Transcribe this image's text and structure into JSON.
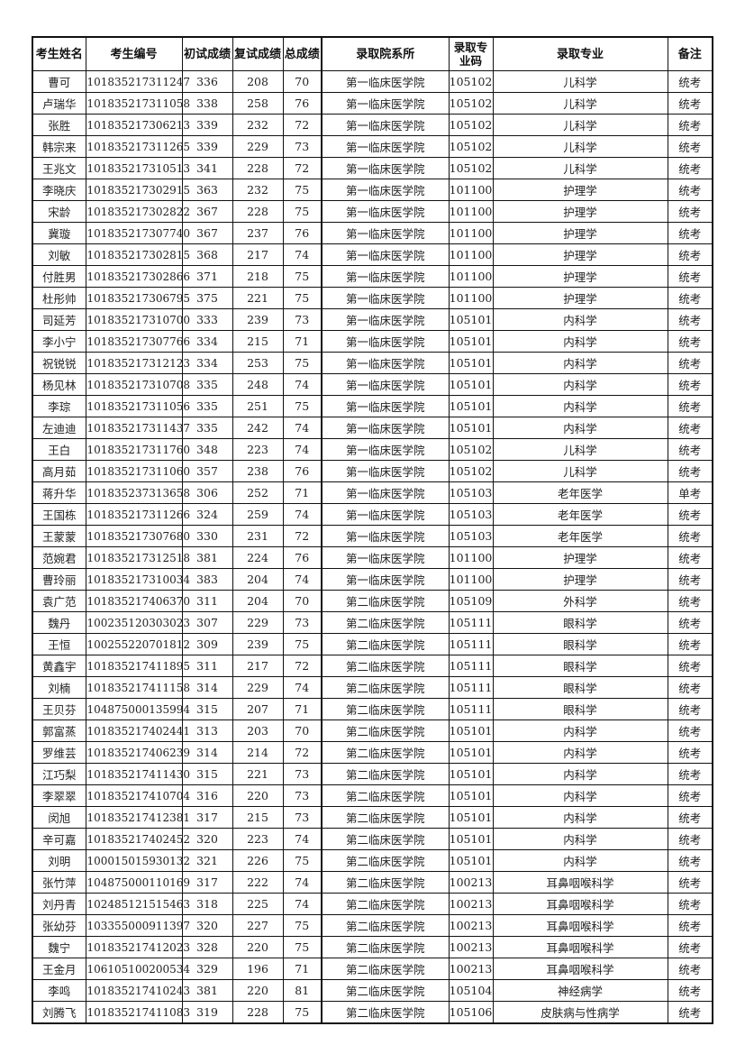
{
  "headers": [
    "考生姓名",
    "考生编号",
    "初试成绩",
    "复试成绩",
    "总成绩",
    "录取院系所",
    "录取专业码",
    "录取专业",
    "备注"
  ],
  "rows": [
    [
      "曹可",
      "101835217311247",
      "336",
      "208",
      "70",
      "第一临床医学院",
      "105102",
      "儿科学",
      "统考"
    ],
    [
      "卢瑞华",
      "101835217311058",
      "338",
      "258",
      "76",
      "第一临床医学院",
      "105102",
      "儿科学",
      "统考"
    ],
    [
      "张胜",
      "101835217306213",
      "339",
      "232",
      "72",
      "第一临床医学院",
      "105102",
      "儿科学",
      "统考"
    ],
    [
      "韩宗来",
      "101835217311265",
      "339",
      "229",
      "73",
      "第一临床医学院",
      "105102",
      "儿科学",
      "统考"
    ],
    [
      "王兆文",
      "101835217310513",
      "341",
      "228",
      "72",
      "第一临床医学院",
      "105102",
      "儿科学",
      "统考"
    ],
    [
      "李晓庆",
      "101835217302915",
      "363",
      "232",
      "75",
      "第一临床医学院",
      "101100",
      "护理学",
      "统考"
    ],
    [
      "宋龄",
      "101835217302822",
      "367",
      "228",
      "75",
      "第一临床医学院",
      "101100",
      "护理学",
      "统考"
    ],
    [
      "冀璇",
      "101835217307740",
      "367",
      "237",
      "76",
      "第一临床医学院",
      "101100",
      "护理学",
      "统考"
    ],
    [
      "刘敏",
      "101835217302815",
      "368",
      "217",
      "74",
      "第一临床医学院",
      "101100",
      "护理学",
      "统考"
    ],
    [
      "付胜男",
      "101835217302866",
      "371",
      "218",
      "75",
      "第一临床医学院",
      "101100",
      "护理学",
      "统考"
    ],
    [
      "杜彤帅",
      "101835217306795",
      "375",
      "221",
      "75",
      "第一临床医学院",
      "101100",
      "护理学",
      "统考"
    ],
    [
      "司延芳",
      "101835217310700",
      "333",
      "239",
      "73",
      "第一临床医学院",
      "105101",
      "内科学",
      "统考"
    ],
    [
      "李小宁",
      "101835217307766",
      "334",
      "215",
      "71",
      "第一临床医学院",
      "105101",
      "内科学",
      "统考"
    ],
    [
      "祝锐锐",
      "101835217312123",
      "334",
      "253",
      "75",
      "第一临床医学院",
      "105101",
      "内科学",
      "统考"
    ],
    [
      "杨见林",
      "101835217310708",
      "335",
      "248",
      "74",
      "第一临床医学院",
      "105101",
      "内科学",
      "统考"
    ],
    [
      "李琮",
      "101835217311056",
      "335",
      "251",
      "75",
      "第一临床医学院",
      "105101",
      "内科学",
      "统考"
    ],
    [
      "左迪迪",
      "101835217311437",
      "335",
      "242",
      "74",
      "第一临床医学院",
      "105101",
      "内科学",
      "统考"
    ],
    [
      "王白",
      "101835217311760",
      "348",
      "223",
      "74",
      "第一临床医学院",
      "105102",
      "儿科学",
      "统考"
    ],
    [
      "高月茹",
      "101835217311060",
      "357",
      "238",
      "76",
      "第一临床医学院",
      "105102",
      "儿科学",
      "统考"
    ],
    [
      "蒋升华",
      "101835237313658",
      "306",
      "252",
      "71",
      "第一临床医学院",
      "105103",
      "老年医学",
      "单考"
    ],
    [
      "王国栋",
      "101835217311266",
      "324",
      "259",
      "74",
      "第一临床医学院",
      "105103",
      "老年医学",
      "统考"
    ],
    [
      "王蒙蒙",
      "101835217307680",
      "330",
      "231",
      "72",
      "第一临床医学院",
      "105103",
      "老年医学",
      "统考"
    ],
    [
      "范婉君",
      "101835217312518",
      "381",
      "224",
      "76",
      "第一临床医学院",
      "101100",
      "护理学",
      "统考"
    ],
    [
      "曹玲丽",
      "101835217310034",
      "383",
      "204",
      "74",
      "第一临床医学院",
      "101100",
      "护理学",
      "统考"
    ],
    [
      "袁广范",
      "101835217406370",
      "311",
      "204",
      "70",
      "第二临床医学院",
      "105109",
      "外科学",
      "统考"
    ],
    [
      "魏丹",
      "100235120303023",
      "307",
      "229",
      "73",
      "第二临床医学院",
      "105111",
      "眼科学",
      "统考"
    ],
    [
      "王恒",
      "100255220701812",
      "309",
      "239",
      "75",
      "第二临床医学院",
      "105111",
      "眼科学",
      "统考"
    ],
    [
      "黄鑫宇",
      "101835217411895",
      "311",
      "217",
      "72",
      "第二临床医学院",
      "105111",
      "眼科学",
      "统考"
    ],
    [
      "刘楠",
      "101835217411158",
      "314",
      "229",
      "74",
      "第二临床医学院",
      "105111",
      "眼科学",
      "统考"
    ],
    [
      "王贝芬",
      "104875000135994",
      "315",
      "207",
      "71",
      "第二临床医学院",
      "105111",
      "眼科学",
      "统考"
    ],
    [
      "郭富蒸",
      "101835217402441",
      "313",
      "203",
      "70",
      "第二临床医学院",
      "105101",
      "内科学",
      "统考"
    ],
    [
      "罗维芸",
      "101835217406239",
      "314",
      "214",
      "72",
      "第二临床医学院",
      "105101",
      "内科学",
      "统考"
    ],
    [
      "江巧梨",
      "101835217411430",
      "315",
      "221",
      "73",
      "第二临床医学院",
      "105101",
      "内科学",
      "统考"
    ],
    [
      "李翠翠",
      "101835217410704",
      "316",
      "220",
      "73",
      "第二临床医学院",
      "105101",
      "内科学",
      "统考"
    ],
    [
      "闵旭",
      "101835217412381",
      "317",
      "215",
      "73",
      "第二临床医学院",
      "105101",
      "内科学",
      "统考"
    ],
    [
      "辛可嘉",
      "101835217402452",
      "320",
      "223",
      "74",
      "第二临床医学院",
      "105101",
      "内科学",
      "统考"
    ],
    [
      "刘明",
      "100015015930132",
      "321",
      "226",
      "75",
      "第二临床医学院",
      "105101",
      "内科学",
      "统考"
    ],
    [
      "张竹萍",
      "104875000110169",
      "317",
      "222",
      "74",
      "第二临床医学院",
      "100213",
      "耳鼻咽喉科学",
      "统考"
    ],
    [
      "刘丹青",
      "102485121515463",
      "318",
      "225",
      "74",
      "第二临床医学院",
      "100213",
      "耳鼻咽喉科学",
      "统考"
    ],
    [
      "张幼芬",
      "103355000911397",
      "320",
      "227",
      "75",
      "第二临床医学院",
      "100213",
      "耳鼻咽喉科学",
      "统考"
    ],
    [
      "魏宁",
      "101835217412023",
      "328",
      "220",
      "75",
      "第二临床医学院",
      "100213",
      "耳鼻咽喉科学",
      "统考"
    ],
    [
      "王金月",
      "106105100200534",
      "329",
      "196",
      "71",
      "第二临床医学院",
      "100213",
      "耳鼻咽喉科学",
      "统考"
    ],
    [
      "李鸣",
      "101835217410243",
      "381",
      "220",
      "81",
      "第二临床医学院",
      "105104",
      "神经病学",
      "统考"
    ],
    [
      "刘腾飞",
      "101835217411083",
      "319",
      "228",
      "75",
      "第二临床医学院",
      "105106",
      "皮肤病与性病学",
      "统考"
    ]
  ]
}
